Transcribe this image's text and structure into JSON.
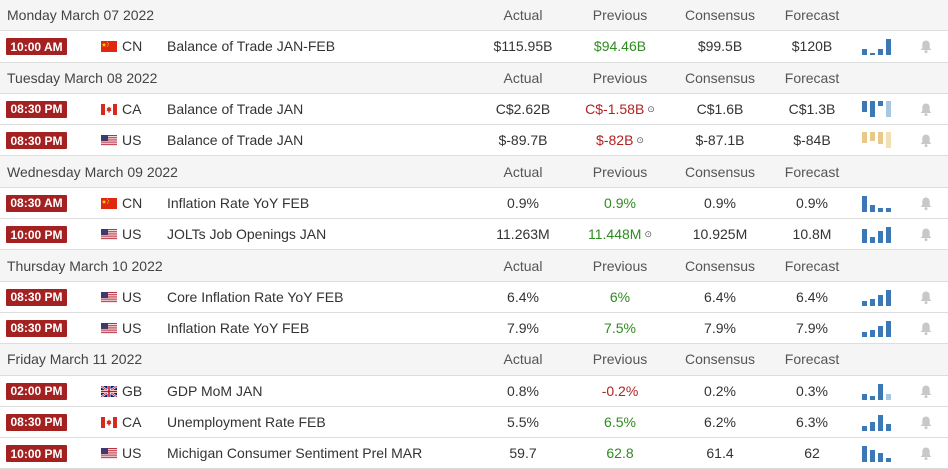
{
  "colors": {
    "time_badge": "#a32121",
    "positive": "#2e8b1f",
    "negative": "#b22222",
    "spark_blue": "#3b78b5",
    "spark_light_blue": "#a9c6e3",
    "spark_gold": "#e8c98a",
    "spark_light_gold": "#f2dfb5",
    "header_bg": "#f5f5f5"
  },
  "columns": {
    "actual": "Actual",
    "previous": "Previous",
    "consensus": "Consensus",
    "forecast": "Forecast"
  },
  "days": [
    {
      "date": "Monday March 07 2022",
      "events": [
        {
          "time": "10:00 AM",
          "flag_icon": "china-flag-icon",
          "country": "CN",
          "event": "Balance of Trade JAN-FEB",
          "actual": "$115.95B",
          "previous": "$94.46B",
          "previous_tone": "green",
          "previous_revised": false,
          "consensus": "$99.5B",
          "forecast": "$120B",
          "spark": {
            "values": [
              3,
              1,
              3,
              8
            ],
            "color": "blue",
            "highlight_last": false
          }
        }
      ]
    },
    {
      "date": "Tuesday March 08 2022",
      "events": [
        {
          "time": "08:30 PM",
          "flag_icon": "canada-flag-icon",
          "country": "CA",
          "event": "Balance of Trade JAN",
          "actual": "C$2.62B",
          "previous": "C$-1.58B",
          "previous_tone": "red",
          "previous_revised": true,
          "consensus": "C$1.6B",
          "forecast": "C$1.3B",
          "spark": {
            "values": [
              4,
              6,
              2,
              6
            ],
            "color": "blue",
            "highlight_last": true,
            "negative": true
          }
        },
        {
          "time": "08:30 PM",
          "flag_icon": "us-flag-icon",
          "country": "US",
          "event": "Balance of Trade JAN",
          "actual": "$-89.7B",
          "previous": "$-82B",
          "previous_tone": "red",
          "previous_revised": true,
          "consensus": "$-87.1B",
          "forecast": "$-84B",
          "spark": {
            "values": [
              6,
              5,
              7,
              9
            ],
            "color": "gold",
            "highlight_last": true,
            "negative": true
          }
        }
      ]
    },
    {
      "date": "Wednesday March 09 2022",
      "events": [
        {
          "time": "08:30 AM",
          "flag_icon": "china-flag-icon",
          "country": "CN",
          "event": "Inflation Rate YoY FEB",
          "actual": "0.9%",
          "previous": "0.9%",
          "previous_tone": "green",
          "previous_revised": false,
          "consensus": "0.9%",
          "forecast": "0.9%",
          "spark": {
            "values": [
              9,
              4,
              2,
              2
            ],
            "color": "blue",
            "highlight_last": false
          }
        },
        {
          "time": "10:00 PM",
          "flag_icon": "us-flag-icon",
          "country": "US",
          "event": "JOLTs Job Openings JAN",
          "actual": "11.263M",
          "previous": "11.448M",
          "previous_tone": "green",
          "previous_revised": true,
          "consensus": "10.925M",
          "forecast": "10.8M",
          "spark": {
            "values": [
              7,
              3,
              6,
              8
            ],
            "color": "blue",
            "highlight_last": false
          }
        }
      ]
    },
    {
      "date": "Thursday March 10 2022",
      "events": [
        {
          "time": "08:30 PM",
          "flag_icon": "us-flag-icon",
          "country": "US",
          "event": "Core Inflation Rate YoY FEB",
          "actual": "6.4%",
          "previous": "6%",
          "previous_tone": "green",
          "previous_revised": false,
          "consensus": "6.4%",
          "forecast": "6.4%",
          "spark": {
            "values": [
              3,
              4,
              6,
              9
            ],
            "color": "blue",
            "highlight_last": false
          }
        },
        {
          "time": "08:30 PM",
          "flag_icon": "us-flag-icon",
          "country": "US",
          "event": "Inflation Rate YoY FEB",
          "actual": "7.9%",
          "previous": "7.5%",
          "previous_tone": "green",
          "previous_revised": false,
          "consensus": "7.9%",
          "forecast": "7.9%",
          "spark": {
            "values": [
              3,
              4,
              6,
              9
            ],
            "color": "blue",
            "highlight_last": false
          }
        }
      ]
    },
    {
      "date": "Friday March 11 2022",
      "events": [
        {
          "time": "02:00 PM",
          "flag_icon": "uk-flag-icon",
          "country": "GB",
          "event": "GDP MoM JAN",
          "actual": "0.8%",
          "previous": "-0.2%",
          "previous_tone": "red",
          "previous_revised": false,
          "consensus": "0.2%",
          "forecast": "0.3%",
          "spark": {
            "values": [
              3,
              2,
              8,
              3
            ],
            "color": "blue",
            "highlight_last": true
          }
        },
        {
          "time": "08:30 PM",
          "flag_icon": "canada-flag-icon",
          "country": "CA",
          "event": "Unemployment Rate FEB",
          "actual": "5.5%",
          "previous": "6.5%",
          "previous_tone": "green",
          "previous_revised": false,
          "consensus": "6.2%",
          "forecast": "6.3%",
          "spark": {
            "values": [
              3,
              5,
              9,
              4
            ],
            "color": "blue",
            "highlight_last": false
          }
        },
        {
          "time": "10:00 PM",
          "flag_icon": "us-flag-icon",
          "country": "US",
          "event": "Michigan Consumer Sentiment Prel MAR",
          "actual": "59.7",
          "previous": "62.8",
          "previous_tone": "green",
          "previous_revised": false,
          "consensus": "61.4",
          "forecast": "62",
          "spark": {
            "values": [
              9,
              7,
              5,
              2
            ],
            "color": "blue",
            "highlight_last": false
          }
        }
      ]
    }
  ]
}
